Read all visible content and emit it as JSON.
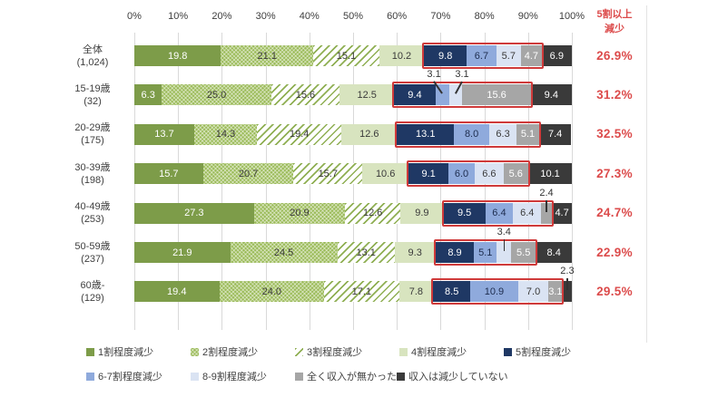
{
  "chart_data": {
    "type": "bar",
    "variant": "horizontal-stacked-100pct",
    "x_ticks": [
      "0%",
      "10%",
      "20%",
      "30%",
      "40%",
      "50%",
      "60%",
      "70%",
      "80%",
      "90%",
      "100%"
    ],
    "grid": true,
    "legend_position": "bottom",
    "legend": [
      {
        "label": "1割程度減少",
        "color": "#7d9c49",
        "pattern": "solid"
      },
      {
        "label": "2割程度減少",
        "color": "#9bbb59",
        "pattern": "dotted-weave"
      },
      {
        "label": "3割程度減少",
        "color": "#8faf53",
        "pattern": "diagonal-stripes-on-white"
      },
      {
        "label": "4割程度減少",
        "color": "#d8e4bf",
        "pattern": "solid"
      },
      {
        "label": "5割程度減少",
        "color": "#1f3864",
        "pattern": "solid"
      },
      {
        "label": "6-7割程度減少",
        "color": "#8faadc",
        "pattern": "solid"
      },
      {
        "label": "8-9割程度減少",
        "color": "#dae3f3",
        "pattern": "solid"
      },
      {
        "label": "全く収入が無かった",
        "color": "#a6a6a6",
        "pattern": "solid"
      },
      {
        "label": "収入は減少していない",
        "color": "#3a3a3a",
        "pattern": "solid"
      }
    ],
    "highlight_series_range": [
      4,
      7
    ],
    "highlight_box_color": "#cf3a3a",
    "right_column": {
      "title_line1": "5割以上",
      "title_line2": "減少",
      "color": "#dc4b4b"
    },
    "rows": [
      {
        "label": "全体",
        "sublabel": "(1,024)",
        "values": [
          19.8,
          21.1,
          15.1,
          10.2,
          9.8,
          6.7,
          5.7,
          4.7,
          6.9
        ],
        "highlight_value": "26.9%",
        "callouts": []
      },
      {
        "label": "15-19歳",
        "sublabel": "(32)",
        "values": [
          6.3,
          25.0,
          15.6,
          12.5,
          9.4,
          3.1,
          3.1,
          15.6,
          9.4
        ],
        "highlight_value": "31.2%",
        "callouts": [
          {
            "index": 5,
            "dx": -9
          },
          {
            "index": 6,
            "dx": 7
          }
        ]
      },
      {
        "label": "20-29歳",
        "sublabel": "(175)",
        "values": [
          13.7,
          14.3,
          19.4,
          12.6,
          13.1,
          8.0,
          6.3,
          5.1,
          7.4
        ],
        "highlight_value": "32.5%",
        "callouts": []
      },
      {
        "label": "30-39歳",
        "sublabel": "(198)",
        "values": [
          15.7,
          20.7,
          15.7,
          10.6,
          9.1,
          6.0,
          6.6,
          5.6,
          10.1
        ],
        "highlight_value": "27.3%",
        "callouts": []
      },
      {
        "label": "40-49歳",
        "sublabel": "(253)",
        "values": [
          27.3,
          20.9,
          12.6,
          9.9,
          9.5,
          6.4,
          6.4,
          2.4,
          4.7
        ],
        "highlight_value": "24.7%",
        "callouts": [
          {
            "index": 7,
            "dx": 0
          }
        ]
      },
      {
        "label": "50-59歳",
        "sublabel": "(237)",
        "values": [
          21.9,
          24.5,
          13.1,
          9.3,
          8.9,
          5.1,
          3.4,
          5.5,
          8.4
        ],
        "highlight_value": "22.9%",
        "callouts": [
          {
            "index": 6,
            "dx": 0
          }
        ]
      },
      {
        "label": "60歳-",
        "sublabel": "(129)",
        "values": [
          19.4,
          24.0,
          17.1,
          7.8,
          8.5,
          10.9,
          7.0,
          3.1,
          2.3
        ],
        "highlight_value": "29.5%",
        "callouts": [
          {
            "index": 8,
            "dx": 0
          }
        ]
      }
    ]
  }
}
